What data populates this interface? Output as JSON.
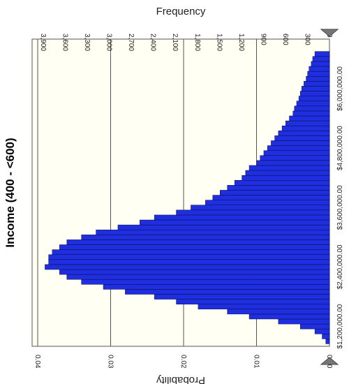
{
  "chart_data": {
    "type": "bar",
    "title": "Income (400 - <600)",
    "xlabel": "",
    "ylabel": "Probability",
    "secondary_ylabel": "Frequency",
    "orientation": "rotated-90-clockwise",
    "xlim": [
      800000,
      7000000
    ],
    "ylim": [
      0,
      0.04
    ],
    "secondary_ylim": [
      0,
      3900
    ],
    "x_ticks": [
      "$1,200,000.00",
      "$2,400,000.00",
      "$3,600,000.00",
      "$4,800,000.00",
      "$6,000,000.00"
    ],
    "y_ticks": [
      "0.00",
      "0.01",
      "0.02",
      "0.03",
      "0.04"
    ],
    "secondary_y_ticks": [
      "0",
      "300",
      "600",
      "900",
      "1,200",
      "1,500",
      "1,800",
      "2,100",
      "2,400",
      "2,700",
      "3,000",
      "3,300",
      "3,600",
      "3,900"
    ],
    "grid": true,
    "bar_color": "#1f2fe0",
    "plot_background": "#fffff3",
    "x": [
      900000,
      1000000,
      1100000,
      1200000,
      1300000,
      1400000,
      1500000,
      1600000,
      1700000,
      1800000,
      1900000,
      2000000,
      2100000,
      2200000,
      2300000,
      2400000,
      2500000,
      2600000,
      2700000,
      2800000,
      2900000,
      3000000,
      3100000,
      3200000,
      3300000,
      3400000,
      3500000,
      3600000,
      3700000,
      3800000,
      3900000,
      4000000,
      4100000,
      4200000,
      4300000,
      4400000,
      4500000,
      4600000,
      4700000,
      4800000,
      4900000,
      5000000,
      5100000,
      5200000,
      5300000,
      5400000,
      5500000,
      5600000,
      5700000,
      5800000,
      5900000,
      6000000,
      6100000,
      6200000,
      6300000,
      6400000,
      6500000,
      6600000,
      6700000
    ],
    "values": [
      0.0005,
      0.001,
      0.002,
      0.004,
      0.007,
      0.011,
      0.014,
      0.018,
      0.021,
      0.024,
      0.028,
      0.031,
      0.034,
      0.036,
      0.037,
      0.039,
      0.0385,
      0.0385,
      0.038,
      0.037,
      0.036,
      0.034,
      0.032,
      0.029,
      0.026,
      0.024,
      0.021,
      0.019,
      0.017,
      0.016,
      0.015,
      0.014,
      0.013,
      0.012,
      0.0115,
      0.011,
      0.01,
      0.0095,
      0.009,
      0.0085,
      0.008,
      0.0075,
      0.007,
      0.0065,
      0.006,
      0.0055,
      0.005,
      0.0048,
      0.0045,
      0.0042,
      0.004,
      0.0038,
      0.0035,
      0.0032,
      0.003,
      0.0028,
      0.0025,
      0.0023,
      0.002
    ]
  }
}
